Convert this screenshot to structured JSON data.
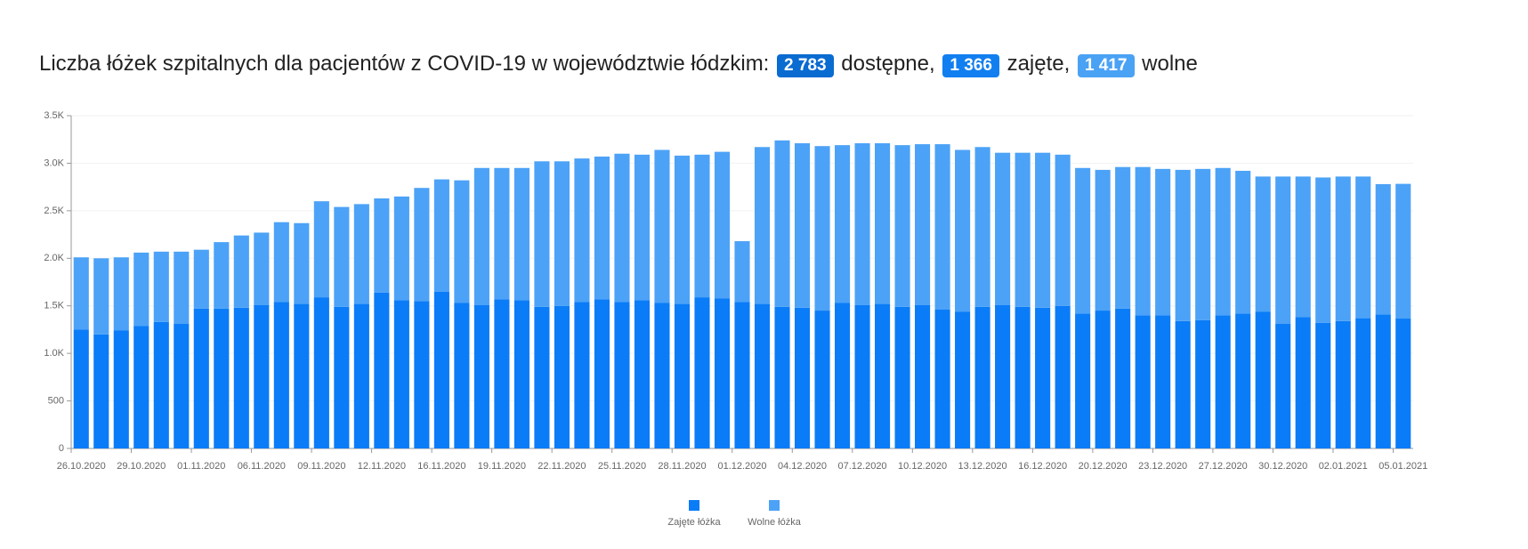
{
  "chart_data": {
    "type": "stacked_bar",
    "title_parts": [
      "Liczba łóżek szpitalnych dla pacjentów z COVID-19 w województwie łódzkim:",
      "2 783",
      "dostępne,",
      "1 366",
      "zajęte,",
      "1 417",
      "wolne"
    ],
    "badge_colors": [
      "#0a6bd1",
      "#127ff0",
      "#4aa2f5"
    ],
    "categories": [
      "26.10.2020",
      null,
      null,
      "29.10.2020",
      null,
      null,
      "01.11.2020",
      null,
      null,
      "06.11.2020",
      null,
      null,
      "09.11.2020",
      null,
      null,
      "12.11.2020",
      null,
      null,
      "16.11.2020",
      null,
      null,
      "19.11.2020",
      null,
      null,
      "22.11.2020",
      null,
      null,
      "25.11.2020",
      null,
      null,
      "28.11.2020",
      null,
      null,
      "01.12.2020",
      null,
      null,
      "04.12.2020",
      null,
      null,
      "07.12.2020",
      null,
      null,
      "10.12.2020",
      null,
      null,
      "13.12.2020",
      null,
      null,
      "16.12.2020",
      null,
      null,
      "20.12.2020",
      null,
      null,
      "23.12.2020",
      null,
      null,
      "27.12.2020",
      null,
      null,
      "30.12.2020",
      null,
      null,
      "02.01.2021",
      null,
      null,
      "05.01.2021"
    ],
    "series": [
      {
        "name": "Zajęte łóżka",
        "color": "#0a7cf7",
        "values": [
          1250,
          1200,
          1240,
          1290,
          1330,
          1310,
          1470,
          1470,
          1480,
          1510,
          1540,
          1520,
          1590,
          1490,
          1520,
          1640,
          1560,
          1550,
          1650,
          1530,
          1510,
          1570,
          1560,
          1490,
          1500,
          1540,
          1570,
          1540,
          1560,
          1530,
          1520,
          1590,
          1580,
          1540,
          1520,
          1490,
          1480,
          1450,
          1530,
          1510,
          1520,
          1490,
          1510,
          1460,
          1440,
          1490,
          1510,
          1490,
          1480,
          1500,
          1420,
          1450,
          1470,
          1400,
          1400,
          1340,
          1350,
          1400,
          1420,
          1440,
          1310,
          1380,
          1320,
          1340,
          1370,
          1410,
          1366
        ]
      },
      {
        "name": "Wolne łóżka",
        "color": "#4ca2f7",
        "values": [
          760,
          800,
          770,
          770,
          740,
          760,
          620,
          700,
          760,
          760,
          840,
          850,
          1010,
          1050,
          1050,
          990,
          1090,
          1190,
          1180,
          1290,
          1440,
          1380,
          1390,
          1530,
          1520,
          1510,
          1500,
          1560,
          1530,
          1610,
          1560,
          1500,
          1540,
          640,
          1650,
          1750,
          1730,
          1730,
          1660,
          1700,
          1690,
          1700,
          1690,
          1740,
          1700,
          1680,
          1600,
          1620,
          1630,
          1590,
          1530,
          1480,
          1490,
          1560,
          1540,
          1590,
          1590,
          1550,
          1500,
          1420,
          1550,
          1480,
          1530,
          1520,
          1490,
          1370,
          1417
        ]
      }
    ],
    "ylim": [
      0,
      3500
    ],
    "yticks": [
      0,
      500,
      {
        "value": 1000,
        "label": "1.0K"
      },
      {
        "value": 1500,
        "label": "1.5K"
      },
      {
        "value": 2000,
        "label": "2.0K"
      },
      {
        "value": 2500,
        "label": "2.5K"
      },
      {
        "value": 3000,
        "label": "3.0K"
      },
      {
        "value": 3500,
        "label": "3.5K"
      }
    ],
    "grid": true
  }
}
